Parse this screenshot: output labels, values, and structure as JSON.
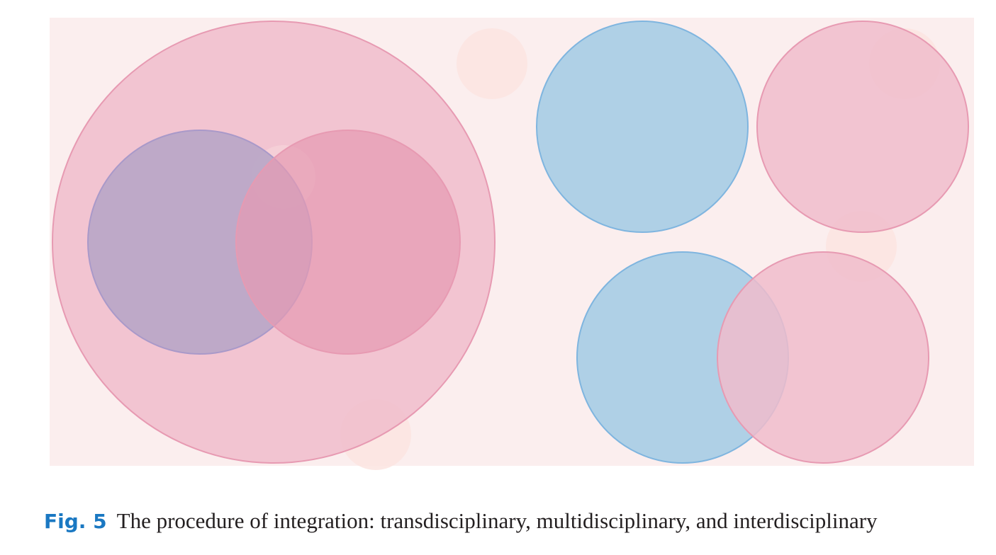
{
  "caption": {
    "label": "Fig. 5",
    "text": "The procedure of integration: transdisciplinary, multidisciplinary, and interdisciplinary"
  },
  "colors": {
    "background": "#fbeeee",
    "pink_fill": "#f0bccb",
    "pink_stroke": "#e79ab2",
    "blue_fill": "#abcde5",
    "blue_stroke": "#7fb5df",
    "purple_fill": "#baa8c7",
    "purple_stroke": "#a999c9",
    "deep_pink_fill": "#e69ab2",
    "bubble_fill": "#fbe4e1",
    "caption_label": "#1a78c2"
  },
  "groups": [
    {
      "name": "transdisciplinary",
      "circles": [
        "outer-pink",
        "purple",
        "deep-pink"
      ]
    },
    {
      "name": "multidisciplinary",
      "circles": [
        "blue",
        "pink"
      ]
    },
    {
      "name": "interdisciplinary",
      "circles": [
        "blue",
        "pink"
      ]
    }
  ]
}
